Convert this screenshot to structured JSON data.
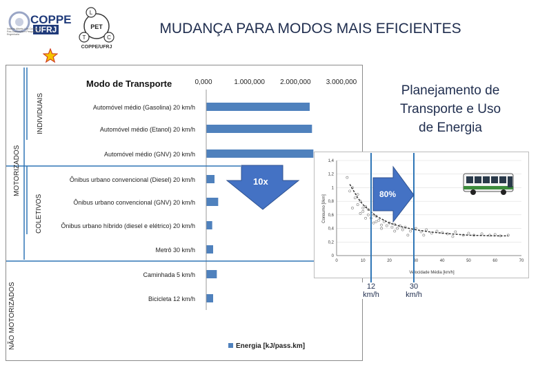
{
  "slide": {
    "title": "MUDANÇA PARA MODOS MAIS EFICIENTES",
    "planning_lines": [
      "Planejamento de",
      "Transporte e Uso",
      "de Energia"
    ],
    "logos": {
      "coppe": "COPPE",
      "ufrj": "UFRJ",
      "coppe_tagline": "Instituto Alberto Luiz Coimbra de Pós-Graduação e Pesquisa de Engenharia",
      "pet_center": "PET",
      "pet_letters": [
        "L",
        "T",
        "C"
      ],
      "pet_caption": "COPPE/UFRJ"
    },
    "arrows": {
      "reduction": "10x",
      "percent": "80%"
    },
    "speed_boxes": [
      {
        "value": "12",
        "unit": "km/h"
      },
      {
        "value": "30",
        "unit": "km/h"
      }
    ],
    "colors": {
      "title": "#1f2d4e",
      "bar": "#4f81bd",
      "arrow_fill": "#4472c4",
      "guide_line": "#2e75b6"
    }
  },
  "chart_data": [
    {
      "type": "bar",
      "orientation": "horizontal",
      "title": "Modo de Transporte",
      "categories": [
        "Automóvel médio (Gasolina) 20 km/h",
        "Automóvel médio (Etanol) 20 km/h",
        "Automóvel médio (GNV) 20 km/h",
        "Ônibus urbano convencional (Diesel) 20 km/h",
        "Ônibus urbano convencional (GNV) 20 km/h",
        "Ônibus urbano híbrido (diesel e elétrico) 20 km/h",
        "Metrô 30 km/h",
        "Caminhada 5 km/h",
        "Bicicleta 12 km/h"
      ],
      "series": [
        {
          "name": "Energia [kJ/pass.km]",
          "values": [
            2250,
            2300,
            2330,
            180,
            260,
            130,
            150,
            230,
            150
          ]
        }
      ],
      "xticks": [
        "0,000",
        "1.000,000",
        "2.000,000",
        "3.000,000"
      ],
      "xlim": [
        0,
        3000
      ],
      "group_labels": {
        "outer_top": "MOTORIZADOS",
        "outer_bottom": "NÃO MOTORIZADOS",
        "inner_top": "INDIVIDUAIS",
        "inner_bottom": "COLETIVOS"
      },
      "legend": "bottom"
    },
    {
      "type": "scatter",
      "xlabel": "Velocidade Média [km/h]",
      "ylabel": "Consumo [l/km]",
      "xticks": [
        "0",
        "10",
        "20",
        "30",
        "40",
        "50",
        "60",
        "70"
      ],
      "yticks": [
        "0",
        "0,2",
        "0,4",
        "0,6",
        "0,8",
        "1",
        "1,2",
        "1,4"
      ],
      "xlim": [
        0,
        70
      ],
      "ylim": [
        0,
        1.4
      ],
      "trend": {
        "x": [
          5,
          8,
          10,
          12,
          15,
          20,
          25,
          30,
          35,
          40,
          50,
          60,
          65
        ],
        "y": [
          1.05,
          0.85,
          0.75,
          0.68,
          0.58,
          0.48,
          0.42,
          0.38,
          0.35,
          0.33,
          0.3,
          0.29,
          0.29
        ]
      },
      "points": {
        "x": [
          4,
          5,
          6,
          7,
          8,
          8,
          9,
          10,
          10,
          11,
          12,
          12,
          13,
          14,
          15,
          15,
          16,
          17,
          18,
          19,
          20,
          21,
          22,
          23,
          24,
          25,
          26,
          28,
          30,
          32,
          34,
          36,
          38,
          40,
          42,
          45,
          48,
          50,
          52,
          55,
          58,
          60,
          62,
          65,
          6,
          9,
          11,
          14,
          17,
          22,
          27,
          33,
          44
        ],
        "y": [
          1.15,
          0.95,
          1.0,
          0.85,
          0.9,
          0.75,
          0.8,
          0.7,
          0.65,
          0.72,
          0.6,
          0.68,
          0.55,
          0.6,
          0.5,
          0.58,
          0.52,
          0.45,
          0.5,
          0.44,
          0.48,
          0.42,
          0.46,
          0.4,
          0.44,
          0.38,
          0.42,
          0.36,
          0.4,
          0.35,
          0.38,
          0.33,
          0.36,
          0.34,
          0.32,
          0.35,
          0.3,
          0.33,
          0.3,
          0.32,
          0.3,
          0.31,
          0.29,
          0.3,
          0.7,
          0.62,
          0.55,
          0.48,
          0.4,
          0.36,
          0.3,
          0.3,
          0.28
        ]
      }
    }
  ]
}
